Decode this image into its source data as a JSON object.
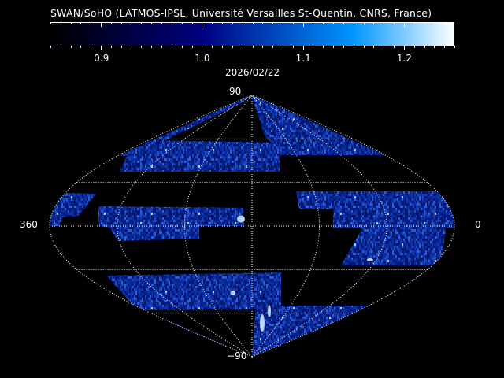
{
  "header": {
    "title": "SWAN/SoHO (LATMOS-IPSL, Université Versailles St-Quentin, CNRS, France)",
    "date": "2026/02/22"
  },
  "colorbar": {
    "range": [
      0.85,
      1.25
    ],
    "ticks": [
      {
        "value": 0.9,
        "label": "0.9"
      },
      {
        "value": 1.0,
        "label": "1.0"
      },
      {
        "value": 1.1,
        "label": "1.1"
      },
      {
        "value": 1.2,
        "label": "1.2"
      }
    ],
    "minor_step": 0.01,
    "stops": [
      {
        "value": 0.85,
        "color": "#000000"
      },
      {
        "value": 1.0,
        "color": "#000080"
      },
      {
        "value": 1.15,
        "color": "#0096ff"
      },
      {
        "value": 1.25,
        "color": "#ffffff"
      }
    ]
  },
  "map": {
    "projection": "sinusoidal",
    "labels": {
      "north": "90",
      "south": "−90",
      "left": "360",
      "right": "0"
    },
    "grid": {
      "latitudes": [
        -60,
        -30,
        0,
        30,
        60
      ],
      "longitude_step": 60,
      "style": "dotted",
      "color": "#ffffff"
    },
    "data_color": "#0a2a9c"
  }
}
